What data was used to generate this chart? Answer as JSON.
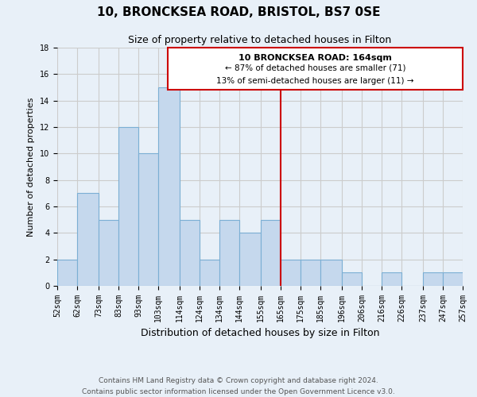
{
  "title": "10, BRONCKSEA ROAD, BRISTOL, BS7 0SE",
  "subtitle": "Size of property relative to detached houses in Filton",
  "xlabel": "Distribution of detached houses by size in Filton",
  "ylabel": "Number of detached properties",
  "bar_edges": [
    52,
    62,
    73,
    83,
    93,
    103,
    114,
    124,
    134,
    144,
    155,
    165,
    175,
    185,
    196,
    206,
    216,
    226,
    237,
    247,
    257
  ],
  "bar_heights": [
    2,
    7,
    5,
    12,
    10,
    15,
    5,
    2,
    5,
    4,
    5,
    2,
    2,
    2,
    1,
    0,
    1,
    0,
    1,
    1
  ],
  "bar_color": "#c5d8ed",
  "bar_edge_color": "#7bafd4",
  "tick_labels": [
    "52sqm",
    "62sqm",
    "73sqm",
    "83sqm",
    "93sqm",
    "103sqm",
    "114sqm",
    "124sqm",
    "134sqm",
    "144sqm",
    "155sqm",
    "165sqm",
    "175sqm",
    "185sqm",
    "196sqm",
    "206sqm",
    "216sqm",
    "226sqm",
    "237sqm",
    "247sqm",
    "257sqm"
  ],
  "vline_x": 165,
  "vline_color": "#cc0000",
  "annotation_title": "10 BRONCKSEA ROAD: 164sqm",
  "annotation_line1": "← 87% of detached houses are smaller (71)",
  "annotation_line2": "13% of semi-detached houses are larger (11) →",
  "annotation_box_color": "#cc0000",
  "annotation_bg_color": "#ffffff",
  "ylim": [
    0,
    18
  ],
  "yticks": [
    0,
    2,
    4,
    6,
    8,
    10,
    12,
    14,
    16,
    18
  ],
  "grid_color": "#cccccc",
  "bg_color": "#e8f0f8",
  "footer_line1": "Contains HM Land Registry data © Crown copyright and database right 2024.",
  "footer_line2": "Contains public sector information licensed under the Open Government Licence v3.0.",
  "title_fontsize": 11,
  "subtitle_fontsize": 9,
  "xlabel_fontsize": 9,
  "ylabel_fontsize": 8,
  "tick_fontsize": 7,
  "footer_fontsize": 6.5,
  "ann_title_fontsize": 8,
  "ann_text_fontsize": 7.5
}
